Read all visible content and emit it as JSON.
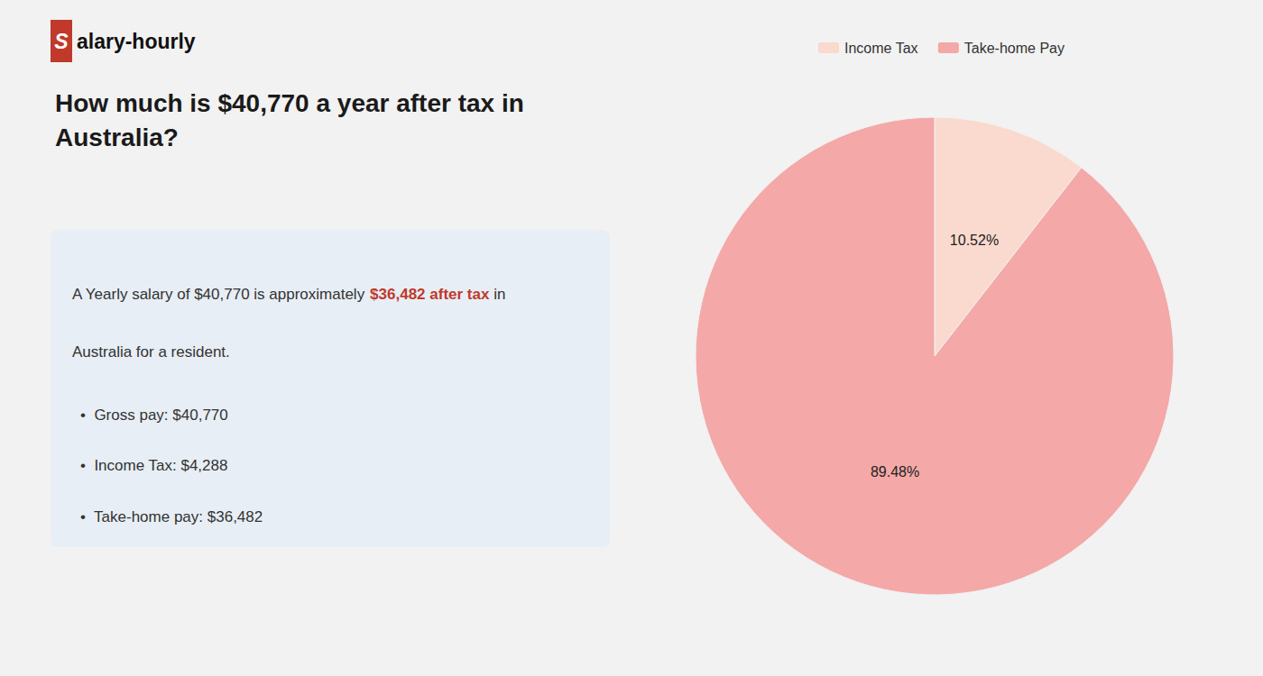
{
  "chart_data": {
    "type": "pie",
    "title": "How much is $40,770 a year after tax in\nAustralia?",
    "categories": [
      "Income Tax",
      "Take-home Pay"
    ],
    "values": [
      10.52,
      89.48
    ],
    "value_labels": [
      "10.52%",
      "89.48%"
    ],
    "colors": [
      "#fad9ce",
      "#f4a8a8"
    ],
    "data_labels": true,
    "legend": "top",
    "annotations": [
      {
        "text": "S",
        "color": "#c0392b"
      },
      {
        "text": "alary-hourly"
      },
      {
        "text": "A Yearly salary of $40,770 is approximately "
      },
      {
        "text": "$36,482 after tax",
        "color": "#c0392b"
      },
      {
        "text": " in"
      },
      {
        "text": "Australia for a resident."
      },
      {
        "text": "•  Gross pay: $40,770"
      },
      {
        "text": "•  Income Tax: $4,288"
      },
      {
        "text": "•  Take-home pay: $36,482"
      }
    ]
  }
}
